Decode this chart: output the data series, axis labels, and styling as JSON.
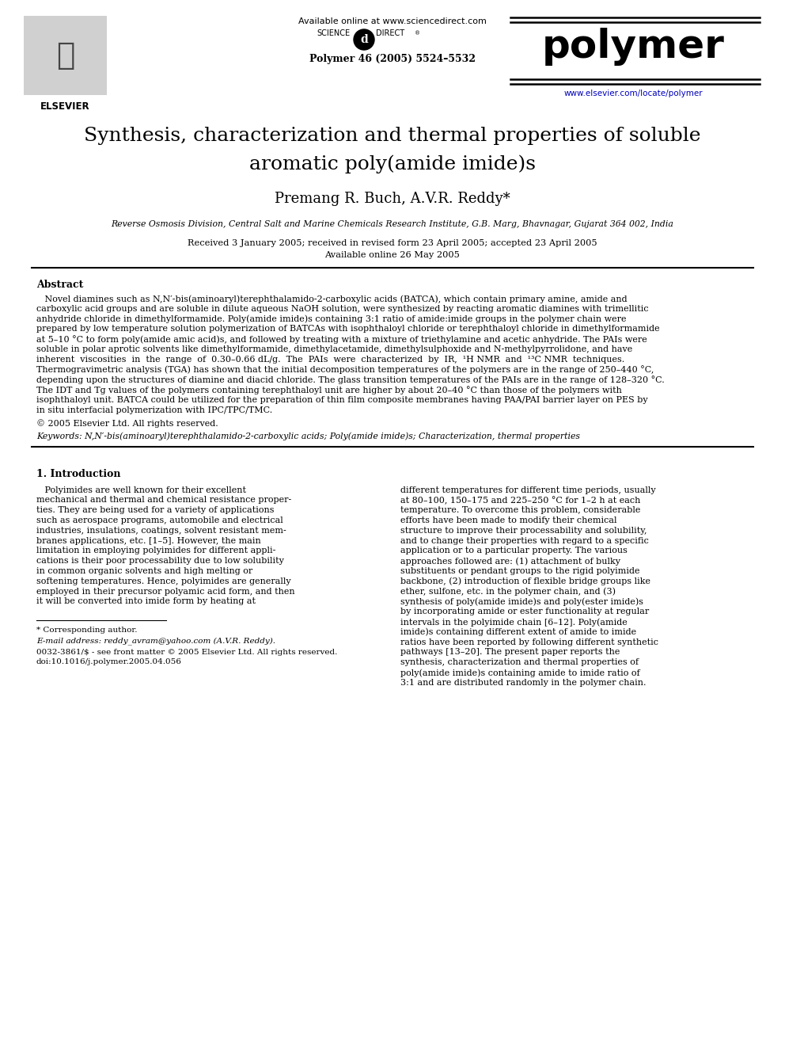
{
  "fig_width": 9.92,
  "fig_height": 13.23,
  "dpi": 100,
  "bg_color": "#ffffff",
  "header_available": "Available online at www.sciencedirect.com",
  "header_journal_ref": "Polymer 46 (2005) 5524–5532",
  "header_journal_name": "polymer",
  "header_url": "www.elsevier.com/locate/polymer",
  "title_line1": "Synthesis, characterization and thermal properties of soluble",
  "title_line2": "aromatic poly(amide imide)s",
  "authors": "Premang R. Buch, A.V.R. Reddy*",
  "affiliation": "Reverse Osmosis Division, Central Salt and Marine Chemicals Research Institute, G.B. Marg, Bhavnagar, Gujarat 364 002, India",
  "date_line1": "Received 3 January 2005; received in revised form 23 April 2005; accepted 23 April 2005",
  "date_line2": "Available online 26 May 2005",
  "abstract_title": "Abstract",
  "abstract_lines": [
    "   Novel diamines such as N,N′-bis(aminoaryl)terephthalamido-2-carboxylic acids (BATCA), which contain primary amine, amide and",
    "carboxylic acid groups and are soluble in dilute aqueous NaOH solution, were synthesized by reacting aromatic diamines with trimellitic",
    "anhydride chloride in dimethylformamide. Poly(amide imide)s containing 3:1 ratio of amide:imide groups in the polymer chain were",
    "prepared by low temperature solution polymerization of BATCAs with isophthaloyl chloride or terephthaloyl chloride in dimethylformamide",
    "at 5–10 °C to form poly(amide amic acid)s, and followed by treating with a mixture of triethylamine and acetic anhydride. The PAIs were",
    "soluble in polar aprotic solvents like dimethylformamide, dimethylacetamide, dimethylsulphoxide and N-methylpyrrolidone, and have",
    "inherent  viscosities  in  the  range  of  0.30–0.66 dL/g.  The  PAIs  were  characterized  by  IR,  ¹H NMR  and  ¹³C NMR  techniques.",
    "Thermogravimetric analysis (TGA) has shown that the initial decomposition temperatures of the polymers are in the range of 250–440 °C,",
    "depending upon the structures of diamine and diacid chloride. The glass transition temperatures of the PAIs are in the range of 128–320 °C.",
    "The IDT and Tg values of the polymers containing terephthaloyl unit are higher by about 20–40 °C than those of the polymers with",
    "isophthaloyl unit. BATCA could be utilized for the preparation of thin film composite membranes having PAA/PAI barrier layer on PES by",
    "in situ interfacial polymerization with IPC/TPC/TMC."
  ],
  "copyright": "© 2005 Elsevier Ltd. All rights reserved.",
  "keywords_line": "Keywords: N,N′-bis(aminoaryl)terephthalamido-2-carboxylic acids; Poly(amide imide)s; Characterization, thermal properties",
  "intro_title": "1. Introduction",
  "intro_left_lines": [
    "   Polyimides are well known for their excellent",
    "mechanical and thermal and chemical resistance proper-",
    "ties. They are being used for a variety of applications",
    "such as aerospace programs, automobile and electrical",
    "industries, insulations, coatings, solvent resistant mem-",
    "branes applications, etc. [1–5]. However, the main",
    "limitation in employing polyimides for different appli-",
    "cations is their poor processability due to low solubility",
    "in common organic solvents and high melting or",
    "softening temperatures. Hence, polyimides are generally",
    "employed in their precursor polyamic acid form, and then",
    "it will be converted into imide form by heating at"
  ],
  "intro_right_lines": [
    "different temperatures for different time periods, usually",
    "at 80–100, 150–175 and 225–250 °C for 1–2 h at each",
    "temperature. To overcome this problem, considerable",
    "efforts have been made to modify their chemical",
    "structure to improve their processability and solubility,",
    "and to change their properties with regard to a specific",
    "application or to a particular property. The various",
    "approaches followed are: (1) attachment of bulky",
    "substituents or pendant groups to the rigid polyimide",
    "backbone, (2) introduction of flexible bridge groups like",
    "ether, sulfone, etc. in the polymer chain, and (3)",
    "synthesis of poly(amide imide)s and poly(ester imide)s",
    "by incorporating amide or ester functionality at regular",
    "intervals in the polyimide chain [6–12]. Poly(amide",
    "imide)s containing different extent of amide to imide",
    "ratios have been reported by following different synthetic",
    "pathways [13–20]. The present paper reports the",
    "synthesis, characterization and thermal properties of",
    "poly(amide imide)s containing amide to imide ratio of",
    "3:1 and are distributed randomly in the polymer chain."
  ],
  "footnote_line": "* Corresponding author.",
  "footnote_email": "E-mail address: reddy_avram@yahoo.com (A.V.R. Reddy).",
  "footnote_issn": "0032-3861/$ - see front matter © 2005 Elsevier Ltd. All rights reserved.",
  "footnote_doi": "doi:10.1016/j.polymer.2005.04.056"
}
